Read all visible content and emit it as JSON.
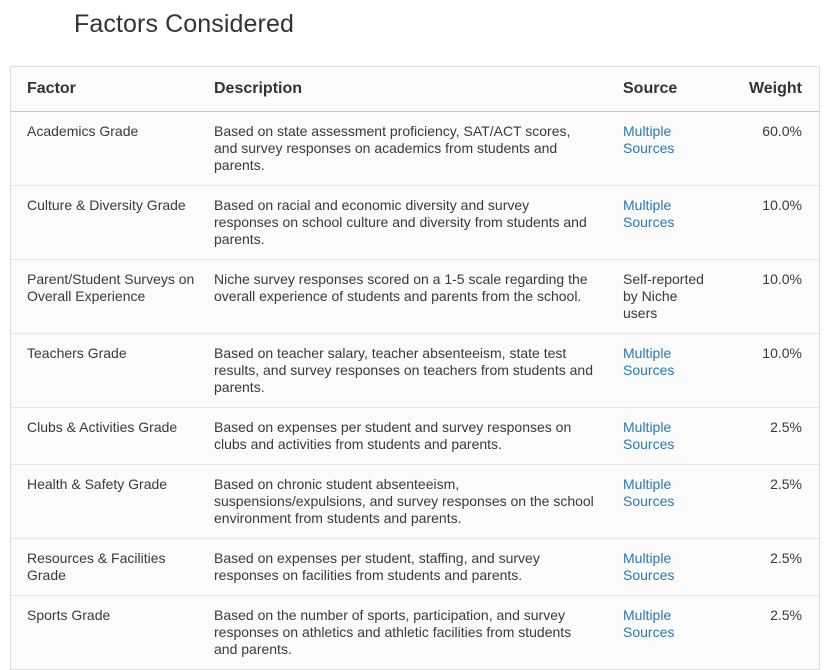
{
  "page": {
    "title": "Factors Considered"
  },
  "table": {
    "headers": {
      "factor": "Factor",
      "description": "Description",
      "source": "Source",
      "weight": "Weight"
    },
    "rows": [
      {
        "factor": "Academics Grade",
        "description": "Based on state assessment proficiency, SAT/ACT scores, and survey responses on academics from students and parents.",
        "source": "Multiple Sources",
        "weight": "60.0%"
      },
      {
        "factor": "Culture & Diversity Grade",
        "description": "Based on racial and economic diversity and survey responses on school culture and diversity from students and parents.",
        "source": "Multiple Sources",
        "weight": "10.0%"
      },
      {
        "factor": "Parent/Student Surveys on Overall Experience",
        "description": "Niche survey responses scored on a 1-5 scale regarding the overall experience of students and parents from the school.",
        "source": "Self-reported by Niche users",
        "weight": "10.0%"
      },
      {
        "factor": "Teachers Grade",
        "description": "Based on teacher salary, teacher absenteeism, state test results, and survey responses on teachers from students and parents.",
        "source": "Multiple Sources",
        "weight": "10.0%"
      },
      {
        "factor": "Clubs & Activities Grade",
        "description": "Based on expenses per student and survey responses on clubs and activities from students and parents.",
        "source": "Multiple Sources",
        "weight": "2.5%"
      },
      {
        "factor": "Health & Safety Grade",
        "description": "Based on chronic student absenteeism, suspensions/expulsions, and survey responses on the school environment from students and parents.",
        "source": "Multiple Sources",
        "weight": "2.5%"
      },
      {
        "factor": "Resources & Facilities Grade",
        "description": "Based on expenses per student, staffing, and survey responses on facilities from students and parents.",
        "source": "Multiple Sources",
        "weight": "2.5%"
      },
      {
        "factor": "Sports Grade",
        "description": "Based on the number of sports, participation, and survey responses on athletics and athletic facilities from students and parents.",
        "source": "Multiple Sources",
        "weight": "2.5%"
      }
    ]
  }
}
